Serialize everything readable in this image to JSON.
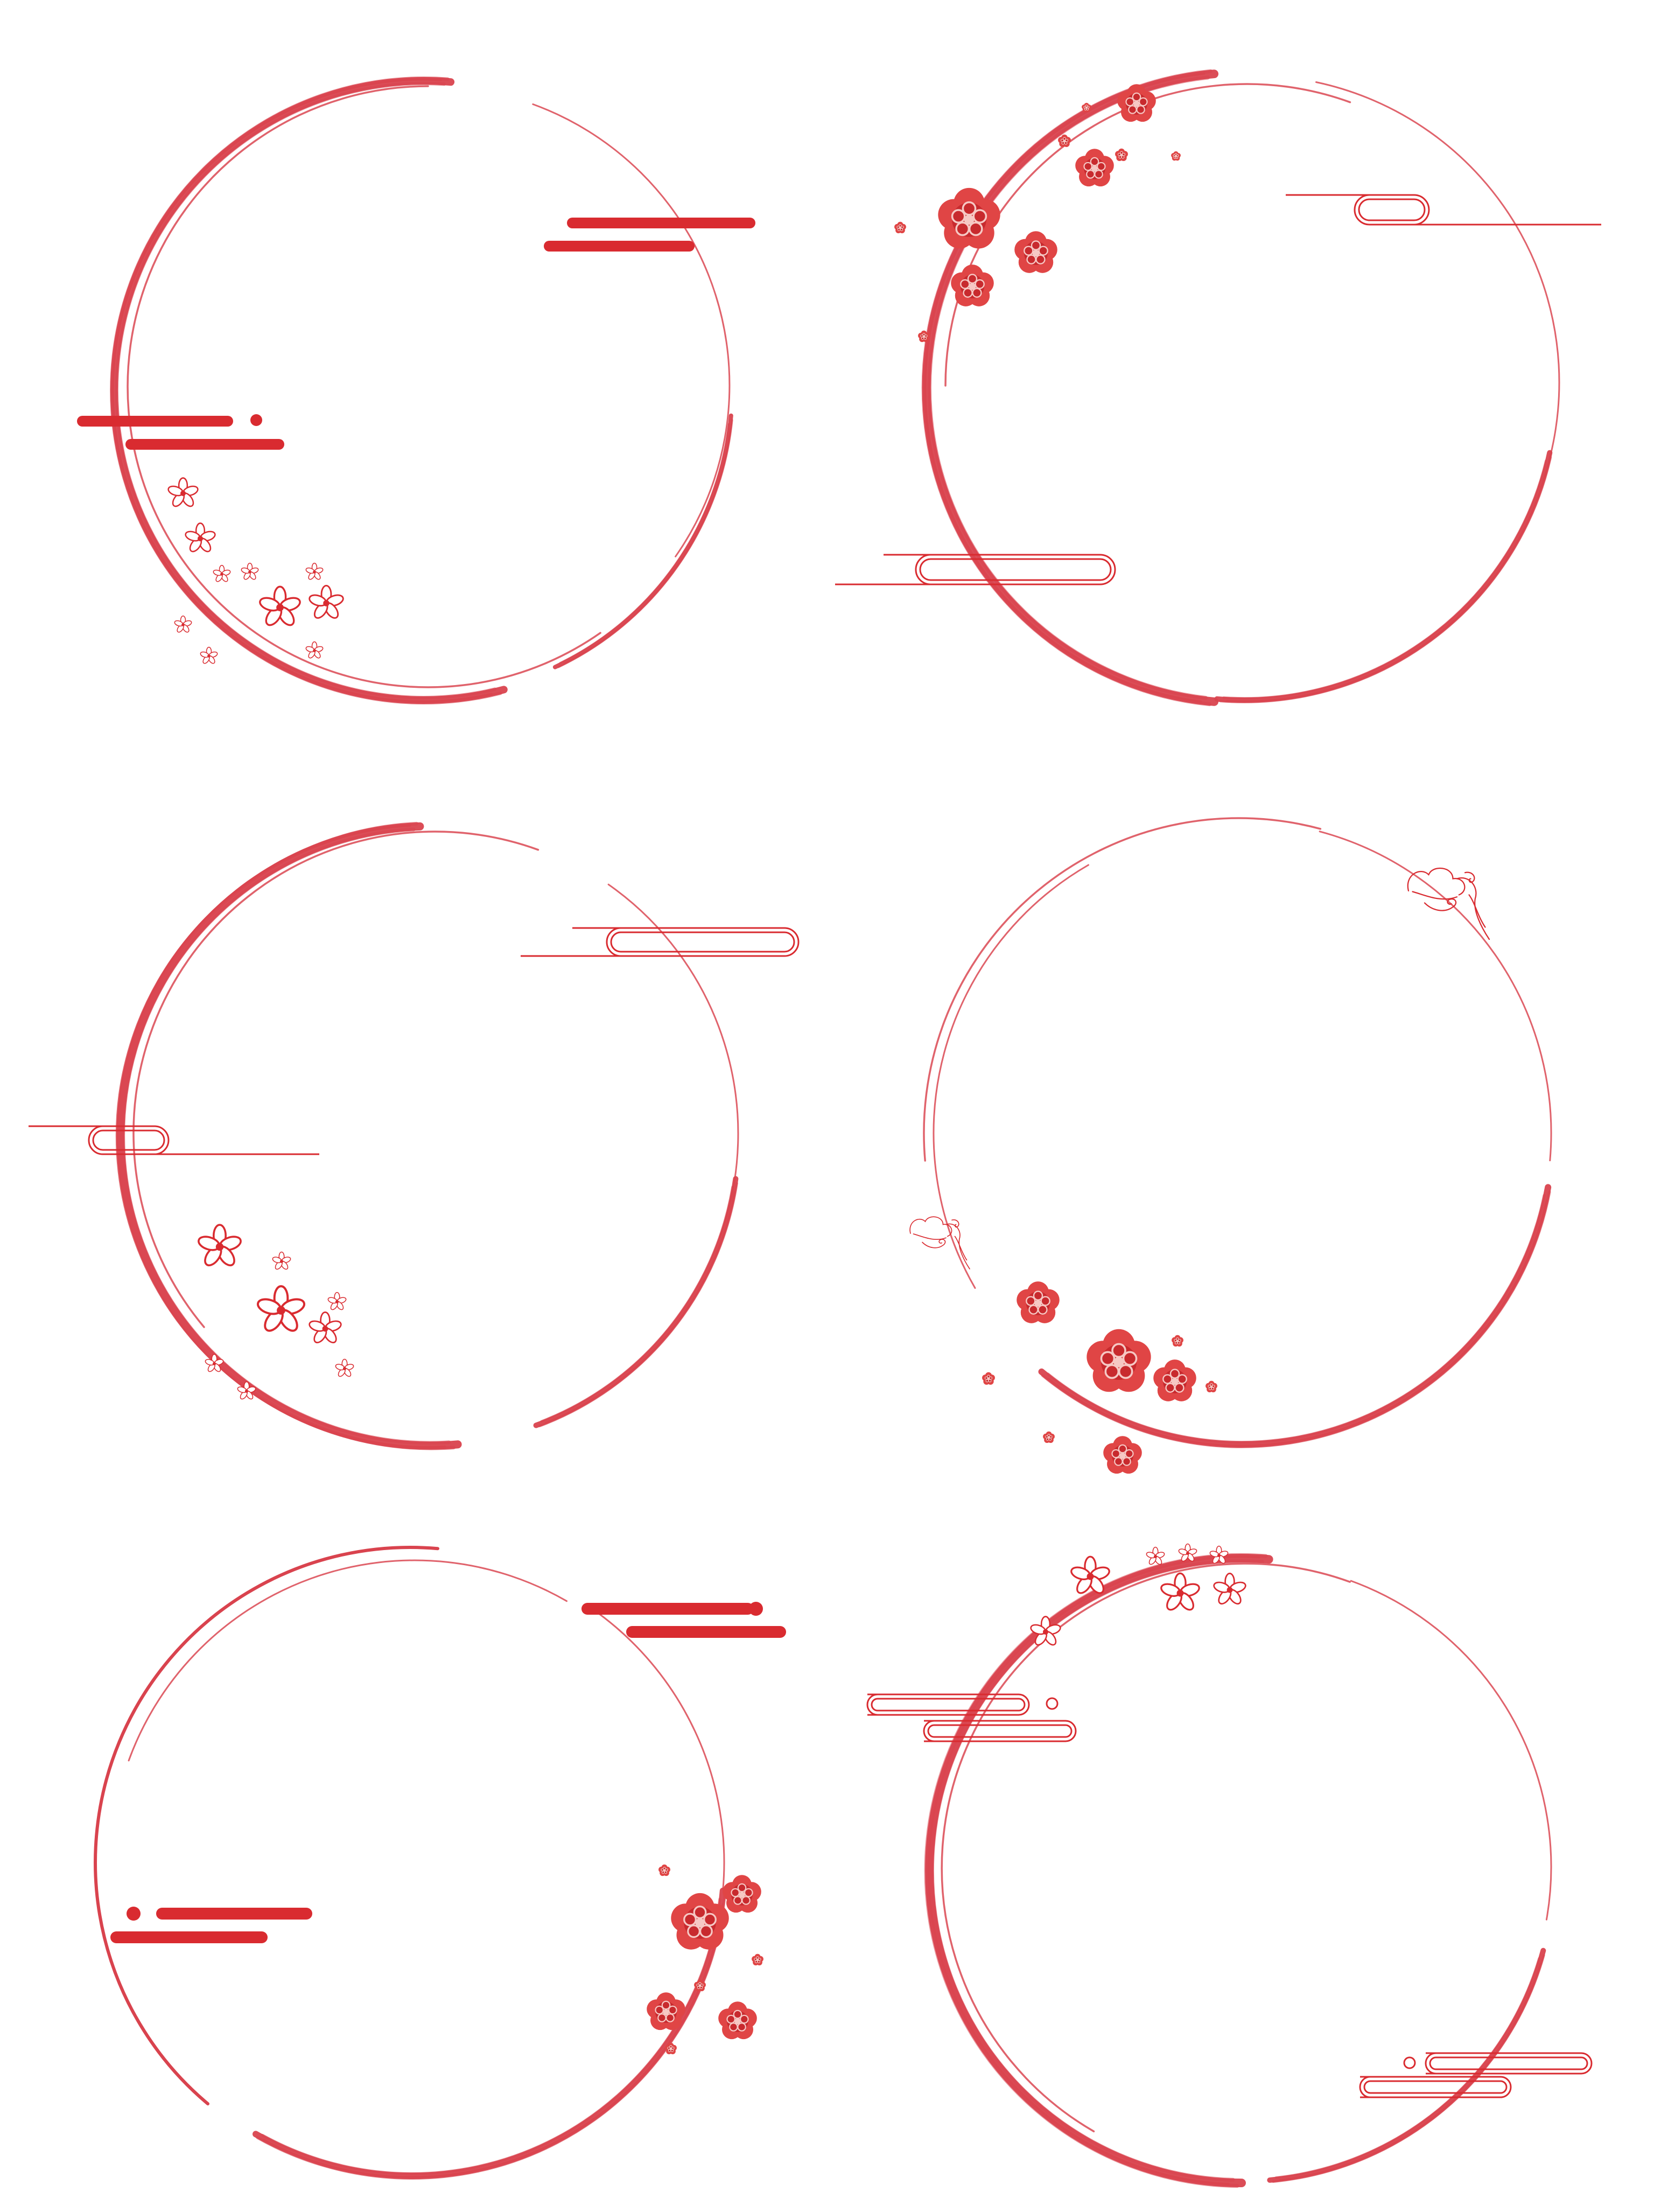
{
  "palette": {
    "ring": "#d9434e",
    "ring_light": "#e0636c",
    "deco": "#d92b30",
    "blossom_fill": "#e04545",
    "blossom_dark": "#c82a2e",
    "blossom_inner": "#f6c8c4",
    "background": "#ffffff"
  },
  "frames": [
    {
      "id": "frame-1",
      "icons": [
        "brush-ring-icon",
        "cloud-bars-icon",
        "outline-flowers-icon"
      ]
    },
    {
      "id": "frame-2",
      "icons": [
        "brush-ring-icon",
        "cloud-ribbon-icon",
        "plum-blossom-icon"
      ]
    },
    {
      "id": "frame-3",
      "icons": [
        "brush-ring-icon",
        "cloud-ribbon-icon",
        "outline-flowers-icon"
      ]
    },
    {
      "id": "frame-4",
      "icons": [
        "brush-ring-icon",
        "swirl-cloud-icon",
        "plum-blossom-icon"
      ]
    },
    {
      "id": "frame-5",
      "icons": [
        "brush-ring-icon",
        "cloud-bars-icon",
        "plum-blossom-icon"
      ]
    },
    {
      "id": "frame-6",
      "icons": [
        "brush-ring-icon",
        "cloud-ribbon-icon",
        "outline-flowers-icon"
      ]
    }
  ]
}
